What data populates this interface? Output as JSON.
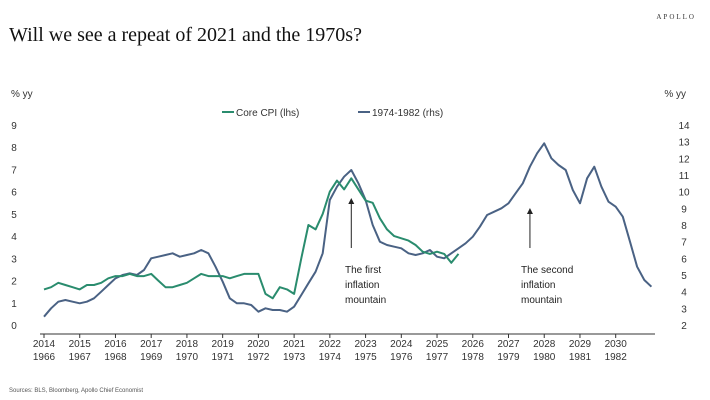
{
  "header": {
    "brand": "APOLLO",
    "title": "Will we see a repeat of 2021 and the 1970s?"
  },
  "footer": {
    "source": "Sources: BLS, Bloomberg, Apollo Chief Economist"
  },
  "chart_data": {
    "type": "line",
    "title": "Will we see a repeat of 2021 and the 1970s?",
    "ylabel_left": "% yy",
    "ylabel_right": "% yy",
    "ylim_left": [
      0,
      9
    ],
    "ylim_right": [
      2,
      14
    ],
    "yticks_left": [
      "0",
      "1",
      "2",
      "3",
      "4",
      "5",
      "6",
      "7",
      "8",
      "9"
    ],
    "yticks_right": [
      "2",
      "3",
      "4",
      "5",
      "6",
      "7",
      "8",
      "9",
      "10",
      "11",
      "12",
      "13",
      "14"
    ],
    "xlim": [
      2014,
      2031.1
    ],
    "xticks_top": [
      "2014",
      "2015",
      "2016",
      "2017",
      "2018",
      "2019",
      "2020",
      "2021",
      "2022",
      "2023",
      "2024",
      "2025",
      "2026",
      "2027",
      "2028",
      "2029",
      "2030"
    ],
    "xticks_bottom": [
      "1966",
      "1967",
      "1968",
      "1969",
      "1970",
      "1971",
      "1972",
      "1973",
      "1974",
      "1975",
      "1976",
      "1977",
      "1978",
      "1979",
      "1980",
      "1981",
      "1982"
    ],
    "legend_position": "top",
    "colors": {
      "core_cpi": "#2a8c6e",
      "seventies": "#4a6284",
      "axis": "#333333"
    },
    "series": [
      {
        "name": "Core CPI (lhs)",
        "axis": "left",
        "x": [
          2014.0,
          2014.2,
          2014.4,
          2014.6,
          2014.8,
          2015.0,
          2015.2,
          2015.4,
          2015.6,
          2015.8,
          2016.0,
          2016.2,
          2016.4,
          2016.6,
          2016.8,
          2017.0,
          2017.2,
          2017.4,
          2017.6,
          2017.8,
          2018.0,
          2018.2,
          2018.4,
          2018.6,
          2018.8,
          2019.0,
          2019.2,
          2019.4,
          2019.6,
          2019.8,
          2020.0,
          2020.2,
          2020.4,
          2020.6,
          2020.8,
          2021.0,
          2021.2,
          2021.4,
          2021.6,
          2021.8,
          2022.0,
          2022.2,
          2022.4,
          2022.6,
          2022.8,
          2023.0,
          2023.2,
          2023.4,
          2023.6,
          2023.8,
          2024.0,
          2024.2,
          2024.4,
          2024.6,
          2024.8,
          2025.0,
          2025.2,
          2025.4,
          2025.6
        ],
        "values": [
          1.6,
          1.7,
          1.9,
          1.8,
          1.7,
          1.6,
          1.8,
          1.8,
          1.9,
          2.1,
          2.2,
          2.2,
          2.3,
          2.2,
          2.2,
          2.3,
          2.0,
          1.7,
          1.7,
          1.8,
          1.9,
          2.1,
          2.3,
          2.2,
          2.2,
          2.2,
          2.1,
          2.2,
          2.3,
          2.3,
          2.3,
          1.4,
          1.2,
          1.7,
          1.6,
          1.4,
          3.0,
          4.5,
          4.3,
          5.0,
          6.0,
          6.5,
          6.1,
          6.6,
          6.1,
          5.6,
          5.5,
          4.8,
          4.3,
          4.0,
          3.9,
          3.8,
          3.6,
          3.3,
          3.2,
          3.3,
          3.2,
          2.8,
          3.2
        ]
      },
      {
        "name": "1974-1982 (rhs)",
        "axis": "right",
        "x": [
          2014.0,
          2014.2,
          2014.4,
          2014.6,
          2014.8,
          2015.0,
          2015.2,
          2015.4,
          2015.6,
          2015.8,
          2016.0,
          2016.2,
          2016.4,
          2016.6,
          2016.8,
          2017.0,
          2017.2,
          2017.4,
          2017.6,
          2017.8,
          2018.0,
          2018.2,
          2018.4,
          2018.6,
          2018.8,
          2019.0,
          2019.2,
          2019.4,
          2019.6,
          2019.8,
          2020.0,
          2020.2,
          2020.4,
          2020.6,
          2020.8,
          2021.0,
          2021.2,
          2021.4,
          2021.6,
          2021.8,
          2022.0,
          2022.2,
          2022.4,
          2022.6,
          2022.8,
          2023.0,
          2023.2,
          2023.4,
          2023.6,
          2023.8,
          2024.0,
          2024.2,
          2024.4,
          2024.6,
          2024.8,
          2025.0,
          2025.2,
          2025.4,
          2025.6,
          2025.8,
          2026.0,
          2026.2,
          2026.4,
          2026.6,
          2026.8,
          2027.0,
          2027.2,
          2027.4,
          2027.6,
          2027.8,
          2028.0,
          2028.2,
          2028.4,
          2028.6,
          2028.8,
          2029.0,
          2029.2,
          2029.4,
          2029.6,
          2029.8,
          2030.0,
          2030.2,
          2030.4,
          2030.6,
          2030.8,
          2031.0
        ],
        "values": [
          2.5,
          3.0,
          3.4,
          3.5,
          3.4,
          3.3,
          3.4,
          3.6,
          4.0,
          4.4,
          4.8,
          5.0,
          5.1,
          5.0,
          5.3,
          6.0,
          6.1,
          6.2,
          6.3,
          6.1,
          6.2,
          6.3,
          6.5,
          6.3,
          5.5,
          4.6,
          3.6,
          3.3,
          3.3,
          3.2,
          2.8,
          3.0,
          2.9,
          2.9,
          2.8,
          3.1,
          3.8,
          4.5,
          5.2,
          6.3,
          9.5,
          10.3,
          10.9,
          11.3,
          10.5,
          9.5,
          8.0,
          7.0,
          6.8,
          6.7,
          6.6,
          6.3,
          6.2,
          6.3,
          6.5,
          6.1,
          6.0,
          6.3,
          6.6,
          6.9,
          7.3,
          7.9,
          8.6,
          8.8,
          9.0,
          9.3,
          9.9,
          10.5,
          11.5,
          12.3,
          12.9,
          12.0,
          11.6,
          11.3,
          10.1,
          9.3,
          10.8,
          11.5,
          10.3,
          9.4,
          9.1,
          8.5,
          7.0,
          5.5,
          4.7,
          4.3
        ]
      }
    ],
    "legend": [
      "Core CPI (lhs)",
      "1974-1982 (rhs)"
    ],
    "annotations": [
      {
        "lines": [
          "The first",
          "inflation",
          "mountain"
        ],
        "x": 2022.6
      },
      {
        "lines": [
          "The second",
          "inflation",
          "mountain"
        ],
        "x": 2027.6
      }
    ]
  }
}
